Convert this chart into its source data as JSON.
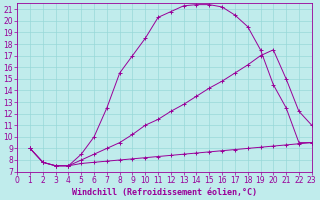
{
  "xlabel": "Windchill (Refroidissement éolien,°C)",
  "bg_color": "#c0ecec",
  "grid_color": "#98d8d8",
  "line_color": "#990099",
  "xlim": [
    0,
    23
  ],
  "ylim": [
    7,
    21.5
  ],
  "xticks": [
    0,
    1,
    2,
    3,
    4,
    5,
    6,
    7,
    8,
    9,
    10,
    11,
    12,
    13,
    14,
    15,
    16,
    17,
    18,
    19,
    20,
    21,
    22,
    23
  ],
  "yticks": [
    7,
    8,
    9,
    10,
    11,
    12,
    13,
    14,
    15,
    16,
    17,
    18,
    19,
    20,
    21
  ],
  "curve1_x": [
    1,
    2,
    3,
    4,
    5,
    6,
    7,
    8,
    9,
    10,
    11,
    12,
    13,
    14,
    15,
    16,
    17,
    18,
    19,
    20,
    21,
    22,
    23
  ],
  "curve1_y": [
    9,
    7.8,
    7.5,
    7.5,
    8.5,
    10.0,
    12.5,
    15.5,
    17.0,
    18.5,
    20.3,
    20.8,
    21.3,
    21.4,
    21.4,
    21.2,
    20.5,
    19.5,
    17.5,
    14.5,
    12.5,
    9.5,
    9.5
  ],
  "curve2_x": [
    1,
    2,
    3,
    4,
    5,
    6,
    7,
    8,
    9,
    10,
    11,
    12,
    13,
    14,
    15,
    16,
    17,
    18,
    19,
    20,
    21,
    22,
    23
  ],
  "curve2_y": [
    9,
    7.8,
    7.5,
    7.5,
    8.0,
    8.5,
    9.0,
    9.5,
    10.2,
    11.0,
    11.5,
    12.2,
    12.8,
    13.5,
    14.2,
    14.8,
    15.5,
    16.2,
    17.0,
    17.5,
    15.0,
    12.2,
    11.0
  ],
  "curve3_x": [
    1,
    2,
    3,
    4,
    5,
    6,
    7,
    8,
    9,
    10,
    11,
    12,
    13,
    14,
    15,
    16,
    17,
    18,
    19,
    20,
    21,
    22,
    23
  ],
  "curve3_y": [
    9,
    7.8,
    7.5,
    7.5,
    7.7,
    7.8,
    7.9,
    8.0,
    8.1,
    8.2,
    8.3,
    8.4,
    8.5,
    8.6,
    8.7,
    8.8,
    8.9,
    9.0,
    9.1,
    9.2,
    9.3,
    9.4,
    9.5
  ],
  "xlabel_fontsize": 6,
  "tick_fontsize": 5.5
}
